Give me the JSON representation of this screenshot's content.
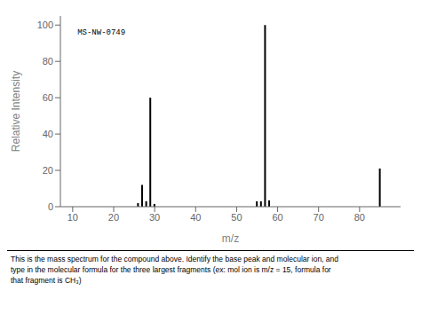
{
  "chart_data": {
    "type": "bar",
    "x": [
      26,
      27,
      28,
      29,
      30,
      55,
      56,
      57,
      58,
      85
    ],
    "values": [
      2,
      12,
      3,
      60,
      1.5,
      3,
      3,
      100,
      3.5,
      21
    ],
    "xlabel": "m/z",
    "ylabel": "Relative Intensity",
    "xlim": [
      7,
      90
    ],
    "ylim": [
      0,
      105
    ],
    "xticks": [
      10,
      20,
      30,
      40,
      50,
      60,
      70,
      80
    ],
    "yticks": [
      0,
      20,
      40,
      60,
      80,
      100
    ],
    "color": "#000000",
    "grid": false,
    "annotations": [
      "MS-NW-0749"
    ],
    "caption": [
      "This is the mass spectrum for the compound above. Identify the base peak and molecular ion, and",
      "type in the molecular formula for the three largest fragments (ex: mol ion is m/z = 15, formula for",
      "that fragment is CH₃)"
    ]
  }
}
